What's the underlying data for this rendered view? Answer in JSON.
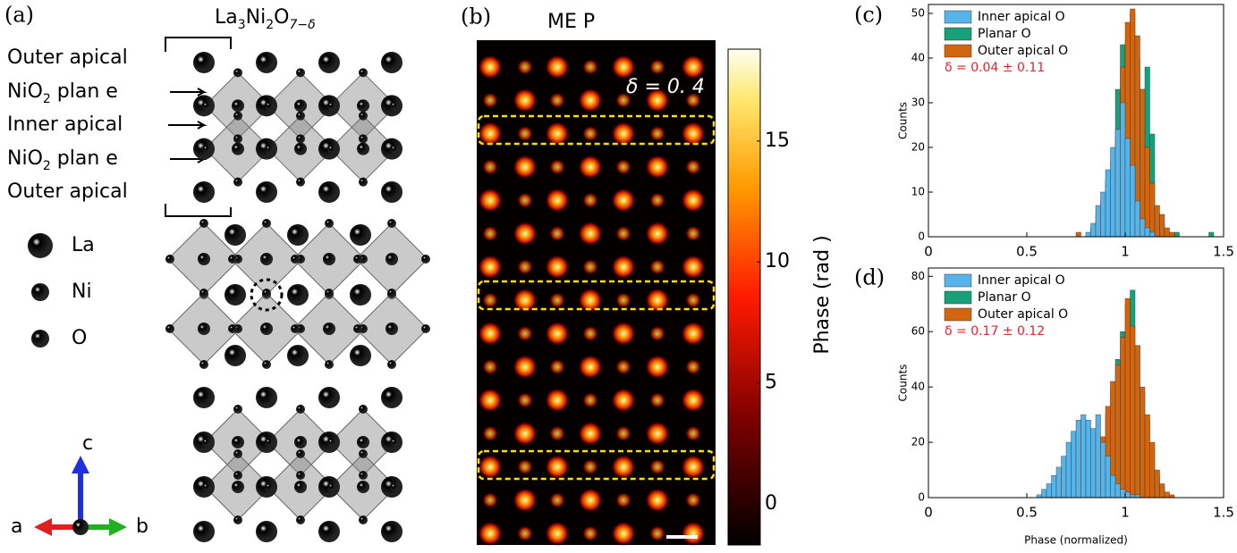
{
  "panel_a": {
    "tag": "(a)",
    "title_parts": [
      "La",
      "3",
      "Ni",
      "2",
      "O",
      "7−δ"
    ],
    "layer_labels": [
      {
        "main": "Outer apical"
      },
      {
        "main": "NiO",
        "sub": "2",
        "rest": " plan e"
      },
      {
        "main": "Inner apical"
      },
      {
        "main": "NiO",
        "sub": "2",
        "rest": " plan e"
      },
      {
        "main": "Outer apical"
      }
    ],
    "atoms": [
      {
        "name": "La",
        "color": "#5151d8"
      },
      {
        "name": "Ni",
        "color": "#27b8c8"
      },
      {
        "name": "O",
        "color": "#b43ad8"
      }
    ],
    "axes": [
      "c",
      "a",
      "b"
    ]
  },
  "panel_b": {
    "tag": "(b)",
    "title": "ME P",
    "annotation": "δ = 0. 4",
    "colorbar_label": "Phase (rad )",
    "colorbar_lim": [
      -1.7,
      18.8
    ],
    "colorbar_ticks": [
      0,
      5,
      10,
      15
    ]
  },
  "chart_data": [
    {
      "type": "histogram",
      "tag": "(c)",
      "ylabel": "Counts",
      "annotation": "δ = 0.04 ± 0.11",
      "xlim": [
        0,
        1.5
      ],
      "xticks": [
        0,
        0.5,
        1,
        1.5
      ],
      "ylim": [
        0,
        52
      ],
      "yticks": [
        0,
        10,
        20,
        30,
        40,
        50
      ],
      "bins": [
        0.7,
        0.725,
        0.75,
        0.775,
        0.8,
        0.825,
        0.85,
        0.875,
        0.9,
        0.925,
        0.95,
        0.975,
        1.0,
        1.025,
        1.05,
        1.075,
        1.1,
        1.125,
        1.15,
        1.175,
        1.2,
        1.225,
        1.25,
        1.275,
        1.3,
        1.325,
        1.35,
        1.375,
        1.4,
        1.425,
        1.45
      ],
      "series": [
        {
          "name": "Inner apical O",
          "color": "#56b4e9",
          "values": [
            0,
            0,
            0,
            0,
            1,
            3,
            7,
            10,
            15,
            20,
            24,
            30,
            22,
            16,
            8,
            4,
            2,
            1,
            0,
            0,
            0,
            0,
            0,
            0,
            0,
            0,
            0,
            0,
            0,
            0
          ]
        },
        {
          "name": "Planar O",
          "color": "#17a07a",
          "values": [
            0,
            0,
            0,
            0,
            0,
            2,
            5,
            8,
            13,
            17,
            33,
            43,
            44,
            50,
            40,
            33,
            38,
            23,
            5,
            3,
            1,
            0,
            1,
            0,
            0,
            0,
            0,
            0,
            0,
            1
          ]
        },
        {
          "name": "Outer apical O",
          "color": "#d2660f",
          "values": [
            0,
            0,
            1,
            0,
            0,
            2,
            3,
            5,
            12,
            15,
            22,
            38,
            48,
            51,
            45,
            33,
            20,
            12,
            7,
            5,
            2,
            1,
            0,
            0,
            0,
            0,
            0,
            0,
            0,
            0
          ]
        }
      ]
    },
    {
      "type": "histogram",
      "tag": "(d)",
      "xlabel": "Phase (normalized)",
      "ylabel": "Counts",
      "annotation": "δ = 0.17 ± 0.12",
      "xlim": [
        0,
        1.5
      ],
      "xticks": [
        0,
        0.5,
        1,
        1.5
      ],
      "ylim": [
        0,
        83
      ],
      "yticks": [
        0,
        20,
        40,
        60,
        80
      ],
      "bins": [
        0.5,
        0.525,
        0.55,
        0.575,
        0.6,
        0.625,
        0.65,
        0.675,
        0.7,
        0.725,
        0.75,
        0.775,
        0.8,
        0.825,
        0.85,
        0.875,
        0.9,
        0.925,
        0.95,
        0.975,
        1.0,
        1.025,
        1.05,
        1.075,
        1.1,
        1.125,
        1.15,
        1.175,
        1.2,
        1.225,
        1.25,
        1.275,
        1.3
      ],
      "series": [
        {
          "name": "Inner apical O",
          "color": "#56b4e9",
          "values": [
            0,
            0,
            1,
            3,
            5,
            8,
            11,
            15,
            20,
            24,
            28,
            30,
            28,
            25,
            30,
            20,
            15,
            8,
            5,
            3,
            2,
            1,
            1,
            0,
            0,
            0,
            0,
            0,
            0,
            0,
            0,
            0
          ]
        },
        {
          "name": "Planar O",
          "color": "#17a07a",
          "values": [
            0,
            0,
            0,
            0,
            0,
            0,
            0,
            0,
            0,
            0,
            0,
            0,
            1,
            3,
            8,
            20,
            30,
            40,
            50,
            60,
            70,
            75,
            55,
            38,
            28,
            18,
            8,
            4,
            1,
            0,
            0,
            0
          ]
        },
        {
          "name": "Outer apical O",
          "color": "#d2660f",
          "values": [
            0,
            0,
            0,
            0,
            0,
            0,
            0,
            0,
            0,
            0,
            0,
            0,
            2,
            4,
            10,
            22,
            33,
            42,
            48,
            58,
            72,
            62,
            55,
            40,
            30,
            20,
            10,
            5,
            2,
            1,
            0,
            0
          ]
        }
      ]
    }
  ]
}
